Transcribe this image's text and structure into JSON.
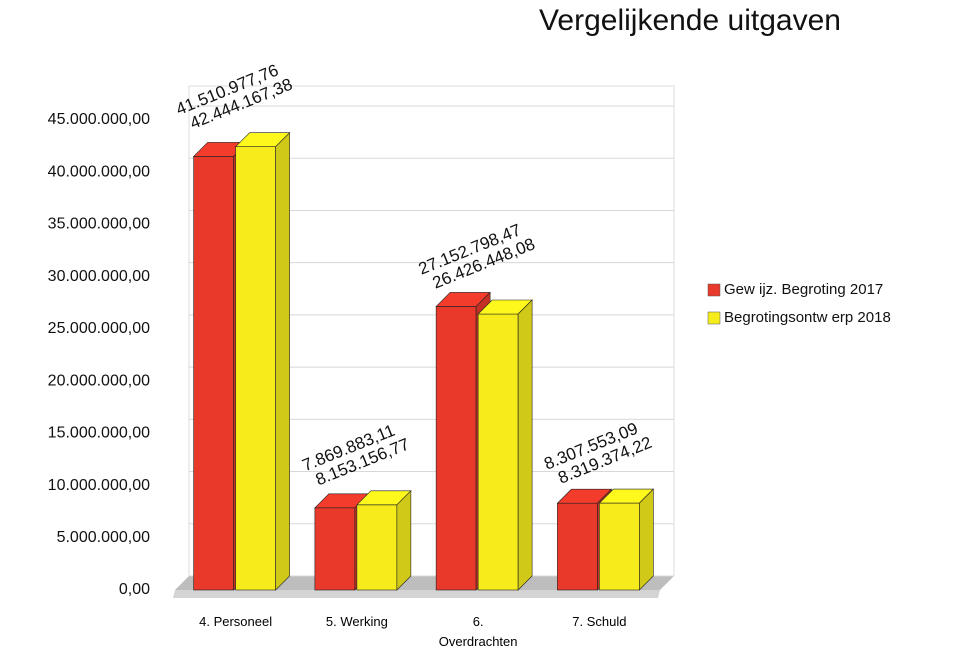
{
  "chart_data": {
    "type": "bar3d",
    "title": "Vergelijkende uitgaven",
    "categories": [
      "4. Personeel",
      "5. Werking",
      "6. Overdrachten",
      "7. Schuld"
    ],
    "series": [
      {
        "name": "Gew ijz. Begroting 2017",
        "color": "#e8392b",
        "values": [
          41510977.76,
          7869883.11,
          27152798.47,
          8307553.09
        ],
        "value_labels": [
          "41.510.977,76",
          "7.869.883,11",
          "27.152.798,47",
          "8.307.553,09"
        ]
      },
      {
        "name": "Begrotingsontw erp 2018",
        "color": "#f6ec1c",
        "values": [
          42444167.38,
          8153156.77,
          26426448.08,
          8319374.22
        ],
        "value_labels": [
          "42.444.167,38",
          "8.153.156,77",
          "26.426.448,08",
          "8.319.374,22"
        ]
      }
    ],
    "ylim": [
      0,
      45000000
    ],
    "yticks": [
      {
        "value": 0,
        "label": "0,00"
      },
      {
        "value": 5000000,
        "label": "5.000.000,00"
      },
      {
        "value": 10000000,
        "label": "10.000.000,00"
      },
      {
        "value": 15000000,
        "label": "15.000.000,00"
      },
      {
        "value": 20000000,
        "label": "20.000.000,00"
      },
      {
        "value": 25000000,
        "label": "25.000.000,00"
      },
      {
        "value": 30000000,
        "label": "30.000.000,00"
      },
      {
        "value": 35000000,
        "label": "35.000.000,00"
      },
      {
        "value": 40000000,
        "label": "40.000.000,00"
      },
      {
        "value": 45000000,
        "label": "45.000.000,00"
      }
    ],
    "grid": true,
    "legend": "right"
  }
}
